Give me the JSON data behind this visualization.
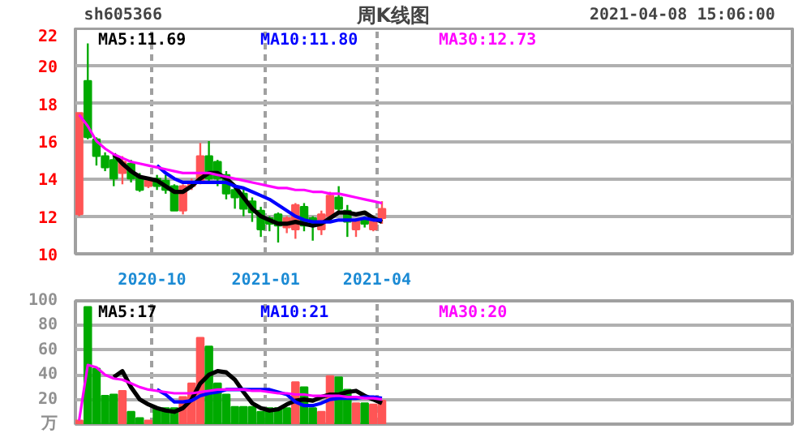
{
  "chart_data": [
    {
      "type": "candlestick",
      "title": "周K线图",
      "subtitle": "sh605366",
      "annotations": [
        "2021-04-08 15:06:00"
      ],
      "x": [
        "2020-08-03",
        "2020-08-10",
        "2020-08-17",
        "2020-08-24",
        "2020-08-31",
        "2020-09-07",
        "2020-09-14",
        "2020-09-21",
        "2020-09-28",
        "2020-10-05",
        "2020-10-12",
        "2020-10-19",
        "2020-10-26",
        "2020-11-02",
        "2020-11-09",
        "2020-11-16",
        "2020-11-23",
        "2020-11-30",
        "2020-12-07",
        "2020-12-14",
        "2020-12-21",
        "2020-12-28",
        "2021-01-04",
        "2021-01-11",
        "2021-01-18",
        "2021-01-25",
        "2021-02-01",
        "2021-02-08",
        "2021-02-15",
        "2021-02-22",
        "2021-03-01",
        "2021-03-08",
        "2021-03-15",
        "2021-03-22",
        "2021-03-29",
        "2021-04-05"
      ],
      "ohlc": [
        [
          12.1,
          17.5,
          12.0,
          17.5
        ],
        [
          19.2,
          21.2,
          16.1,
          16.2
        ],
        [
          16.1,
          16.2,
          14.7,
          15.2
        ],
        [
          15.2,
          15.4,
          14.4,
          14.6
        ],
        [
          15.0,
          15.2,
          13.6,
          14.0
        ],
        [
          14.3,
          15.2,
          13.7,
          14.9
        ],
        [
          14.8,
          15.0,
          13.8,
          14.0
        ],
        [
          14.1,
          14.3,
          13.3,
          13.4
        ],
        [
          13.6,
          14.0,
          13.5,
          13.9
        ],
        [
          14.0,
          14.2,
          13.4,
          13.6
        ],
        [
          13.9,
          14.2,
          13.2,
          13.4
        ],
        [
          13.6,
          13.7,
          12.3,
          12.3
        ],
        [
          12.3,
          13.7,
          12.1,
          13.6
        ],
        [
          13.6,
          14.0,
          13.4,
          13.8
        ],
        [
          13.8,
          15.9,
          13.7,
          15.2
        ],
        [
          15.2,
          16.0,
          13.8,
          14.0
        ],
        [
          14.9,
          15.0,
          13.6,
          14.0
        ],
        [
          14.2,
          14.4,
          12.9,
          13.2
        ],
        [
          13.4,
          13.6,
          12.4,
          13.0
        ],
        [
          13.2,
          13.5,
          12.0,
          12.4
        ],
        [
          12.8,
          13.0,
          11.7,
          12.2
        ],
        [
          12.3,
          12.5,
          10.9,
          11.3
        ],
        [
          11.9,
          12.0,
          11.2,
          11.6
        ],
        [
          12.1,
          12.2,
          10.6,
          11.5
        ],
        [
          11.4,
          12.0,
          11.1,
          11.9
        ],
        [
          11.3,
          12.7,
          10.8,
          12.6
        ],
        [
          12.5,
          12.7,
          11.2,
          11.5
        ],
        [
          11.9,
          12.0,
          10.7,
          11.6
        ],
        [
          11.3,
          12.3,
          11.0,
          12.1
        ],
        [
          12.0,
          13.3,
          11.8,
          13.1
        ],
        [
          13.0,
          13.6,
          12.2,
          12.4
        ],
        [
          12.3,
          12.6,
          10.9,
          11.7
        ],
        [
          11.3,
          11.9,
          10.9,
          11.8
        ],
        [
          11.9,
          12.0,
          11.4,
          11.6
        ],
        [
          11.3,
          12.0,
          11.2,
          11.9
        ],
        [
          11.9,
          12.8,
          11.6,
          12.4
        ]
      ],
      "colors": [
        "#ff5555",
        "#00aa00",
        "#00aa00",
        "#00aa00",
        "#00aa00",
        "#ff5555",
        "#00aa00",
        "#00aa00",
        "#ff5555",
        "#00aa00",
        "#00aa00",
        "#00aa00",
        "#ff5555",
        "#ff5555",
        "#ff5555",
        "#00aa00",
        "#00aa00",
        "#00aa00",
        "#00aa00",
        "#00aa00",
        "#00aa00",
        "#00aa00",
        "#00aa00",
        "#00aa00",
        "#ff5555",
        "#ff5555",
        "#00aa00",
        "#00aa00",
        "#ff5555",
        "#ff5555",
        "#00aa00",
        "#00aa00",
        "#ff5555",
        "#00aa00",
        "#ff5555",
        "#ff5555"
      ],
      "series": [
        {
          "name": "MA5:11.69",
          "type": "line",
          "color": "#000000",
          "values": [
            null,
            null,
            null,
            null,
            15.3,
            14.8,
            14.4,
            14.1,
            14.0,
            13.9,
            13.6,
            13.3,
            13.3,
            13.6,
            14.0,
            14.3,
            14.3,
            14.0,
            13.6,
            13.0,
            12.4,
            12.0,
            11.8,
            11.6,
            11.6,
            11.7,
            11.6,
            11.5,
            11.6,
            11.9,
            12.2,
            12.2,
            12.1,
            12.2,
            11.9,
            11.7
          ]
        },
        {
          "name": "MA10:11.80",
          "type": "line",
          "color": "#0000ff",
          "values": [
            null,
            null,
            null,
            null,
            null,
            null,
            null,
            null,
            null,
            14.7,
            14.3,
            14.0,
            13.8,
            13.8,
            13.8,
            13.8,
            13.8,
            13.8,
            13.6,
            13.5,
            13.3,
            13.1,
            12.9,
            12.6,
            12.3,
            12.0,
            11.8,
            11.7,
            11.7,
            11.7,
            11.8,
            11.8,
            11.8,
            11.9,
            11.8,
            11.8
          ]
        },
        {
          "name": "MA30:12.73",
          "type": "line",
          "color": "#ff00ff",
          "values": [
            17.4,
            16.8,
            16.0,
            15.6,
            15.3,
            15.1,
            14.9,
            14.8,
            14.7,
            14.6,
            14.5,
            14.4,
            14.3,
            14.3,
            14.3,
            14.3,
            14.2,
            14.1,
            14.0,
            13.9,
            13.8,
            13.7,
            13.6,
            13.5,
            13.5,
            13.4,
            13.4,
            13.3,
            13.3,
            13.2,
            13.2,
            13.1,
            13.0,
            12.9,
            12.8,
            12.7
          ]
        }
      ],
      "xlim": [
        "2020-07-31",
        "2022-03-03"
      ],
      "xticks": [
        {
          "value": "2020-10-01",
          "label": "2020-10"
        },
        {
          "value": "2021-01-01",
          "label": "2021-01"
        },
        {
          "value": "2021-04-01",
          "label": "2021-04"
        }
      ],
      "ylim": [
        10,
        22
      ],
      "yticks": [
        10,
        12,
        14,
        16,
        18,
        20,
        22
      ],
      "grid": true
    },
    {
      "type": "bar",
      "x": [
        "2020-08-03",
        "2020-08-10",
        "2020-08-17",
        "2020-08-24",
        "2020-08-31",
        "2020-09-07",
        "2020-09-14",
        "2020-09-21",
        "2020-09-28",
        "2020-10-05",
        "2020-10-12",
        "2020-10-19",
        "2020-10-26",
        "2020-11-02",
        "2020-11-09",
        "2020-11-16",
        "2020-11-23",
        "2020-11-30",
        "2020-12-07",
        "2020-12-14",
        "2020-12-21",
        "2020-12-28",
        "2021-01-04",
        "2021-01-11",
        "2021-01-18",
        "2021-01-25",
        "2021-02-01",
        "2021-02-08",
        "2021-02-15",
        "2021-02-22",
        "2021-03-01",
        "2021-03-08",
        "2021-03-15",
        "2021-03-22",
        "2021-03-29",
        "2021-04-05"
      ],
      "values": [
        3,
        95,
        45,
        23,
        24,
        27,
        10,
        5,
        3,
        13,
        13,
        13,
        22,
        33,
        70,
        63,
        33,
        24,
        14,
        14,
        14,
        10,
        13,
        13,
        13,
        34,
        30,
        13,
        10,
        39,
        38,
        28,
        17,
        17,
        16,
        19
      ],
      "colors": [
        "#ff5555",
        "#00aa00",
        "#00aa00",
        "#00aa00",
        "#00aa00",
        "#ff5555",
        "#00aa00",
        "#00aa00",
        "#ff5555",
        "#00aa00",
        "#00aa00",
        "#00aa00",
        "#ff5555",
        "#ff5555",
        "#ff5555",
        "#00aa00",
        "#00aa00",
        "#00aa00",
        "#00aa00",
        "#00aa00",
        "#00aa00",
        "#00aa00",
        "#00aa00",
        "#00aa00",
        "#00aa00",
        "#ff5555",
        "#00aa00",
        "#00aa00",
        "#ff5555",
        "#ff5555",
        "#00aa00",
        "#00aa00",
        "#ff5555",
        "#00aa00",
        "#ff5555",
        "#ff5555"
      ],
      "series": [
        {
          "name": "MA5:17",
          "type": "line",
          "color": "#000000",
          "values": [
            null,
            null,
            null,
            null,
            38,
            43,
            30,
            20,
            16,
            13,
            11,
            10,
            13,
            20,
            33,
            40,
            43,
            42,
            36,
            26,
            17,
            13,
            11,
            12,
            16,
            19,
            20,
            19,
            22,
            24,
            24,
            26,
            27,
            23,
            20,
            17
          ]
        },
        {
          "name": "MA10:21",
          "type": "line",
          "color": "#0000ff",
          "values": [
            null,
            null,
            null,
            null,
            null,
            null,
            null,
            null,
            null,
            28,
            24,
            18,
            18,
            19,
            23,
            25,
            26,
            28,
            28,
            28,
            28,
            28,
            28,
            26,
            24,
            18,
            15,
            15,
            17,
            20,
            21,
            21,
            21,
            22,
            22,
            21
          ]
        },
        {
          "name": "MA30:20",
          "type": "line",
          "color": "#ff00ff",
          "values": [
            3,
            48,
            46,
            40,
            37,
            36,
            33,
            30,
            28,
            27,
            26,
            25,
            25,
            25,
            26,
            27,
            28,
            28,
            28,
            28,
            27,
            27,
            26,
            25,
            25,
            24,
            24,
            23,
            23,
            23,
            23,
            22,
            22,
            21,
            21,
            20
          ]
        }
      ],
      "xlim": [
        "2020-07-31",
        "2022-03-03"
      ],
      "xticks": [
        {
          "value": "2020-10-01",
          "label": null
        },
        {
          "value": "2021-01-01",
          "label": null
        },
        {
          "value": "2021-04-01",
          "label": null
        }
      ],
      "ylim": [
        0,
        100
      ],
      "yticks": [
        {
          "value": 0,
          "label": "万"
        },
        20,
        40,
        60,
        80,
        100
      ],
      "tick_labels": "y",
      "grid": true
    }
  ]
}
